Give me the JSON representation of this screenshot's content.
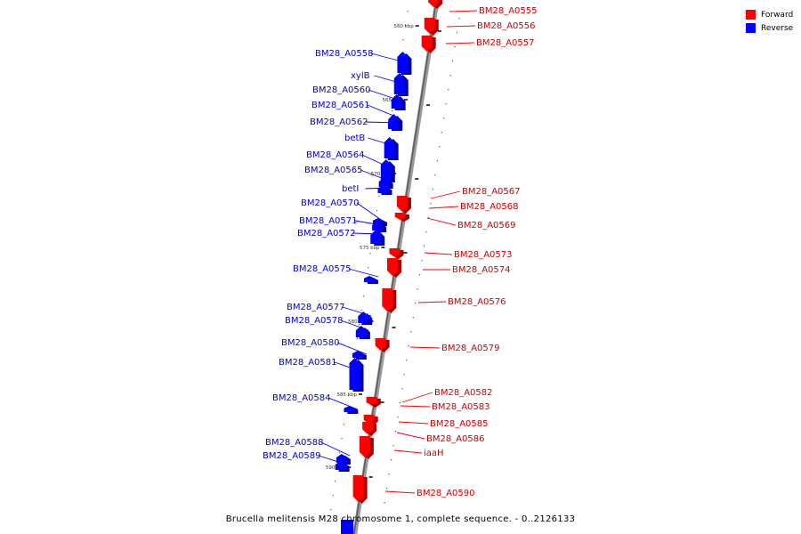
{
  "caption": "Brucella melitensis M28 chromosome 1, complete sequence. - 0..2126133",
  "legend": {
    "forward_label": "Forward",
    "reverse_label": "Reverse",
    "forward_color": "#ff0000",
    "reverse_color": "#0000ff"
  },
  "ruler": [
    {
      "label": "560 kbp"
    },
    {
      "label": "565 kbp"
    },
    {
      "label": "570 kbp"
    },
    {
      "label": "575 kbp"
    },
    {
      "label": "580 kbp"
    },
    {
      "label": "585 kbp"
    },
    {
      "label": "590 kbp"
    }
  ],
  "genes": [
    {
      "name": "BM28_A0555",
      "strand": "forward"
    },
    {
      "name": "BM28_A0556",
      "strand": "forward"
    },
    {
      "name": "BM28_A0557",
      "strand": "forward"
    },
    {
      "name": "BM28_A0558",
      "strand": "reverse"
    },
    {
      "name": "xylB",
      "strand": "reverse"
    },
    {
      "name": "BM28_A0560",
      "strand": "reverse"
    },
    {
      "name": "BM28_A0561",
      "strand": "reverse"
    },
    {
      "name": "BM28_A0562",
      "strand": "reverse"
    },
    {
      "name": "betB",
      "strand": "reverse"
    },
    {
      "name": "BM28_A0564",
      "strand": "reverse"
    },
    {
      "name": "BM28_A0565",
      "strand": "reverse"
    },
    {
      "name": "betI",
      "strand": "reverse"
    },
    {
      "name": "BM28_A0567",
      "strand": "forward"
    },
    {
      "name": "BM28_A0568",
      "strand": "forward"
    },
    {
      "name": "BM28_A0569",
      "strand": "forward"
    },
    {
      "name": "BM28_A0570",
      "strand": "reverse"
    },
    {
      "name": "BM28_A0571",
      "strand": "reverse"
    },
    {
      "name": "BM28_A0572",
      "strand": "reverse"
    },
    {
      "name": "BM28_A0573",
      "strand": "forward"
    },
    {
      "name": "BM28_A0574",
      "strand": "forward"
    },
    {
      "name": "BM28_A0575",
      "strand": "reverse"
    },
    {
      "name": "BM28_A0576",
      "strand": "forward"
    },
    {
      "name": "BM28_A0577",
      "strand": "reverse"
    },
    {
      "name": "BM28_A0578",
      "strand": "reverse"
    },
    {
      "name": "BM28_A0579",
      "strand": "forward"
    },
    {
      "name": "BM28_A0580",
      "strand": "reverse"
    },
    {
      "name": "BM28_A0581",
      "strand": "reverse"
    },
    {
      "name": "BM28_A0582",
      "strand": "forward"
    },
    {
      "name": "BM28_A0583",
      "strand": "forward"
    },
    {
      "name": "BM28_A0584",
      "strand": "reverse"
    },
    {
      "name": "BM28_A0585",
      "strand": "forward"
    },
    {
      "name": "BM28_A0586",
      "strand": "forward"
    },
    {
      "name": "iaaH",
      "strand": "forward"
    },
    {
      "name": "BM28_A0588",
      "strand": "reverse"
    },
    {
      "name": "BM28_A0589",
      "strand": "reverse"
    },
    {
      "name": "BM28_A0590",
      "strand": "forward"
    }
  ]
}
